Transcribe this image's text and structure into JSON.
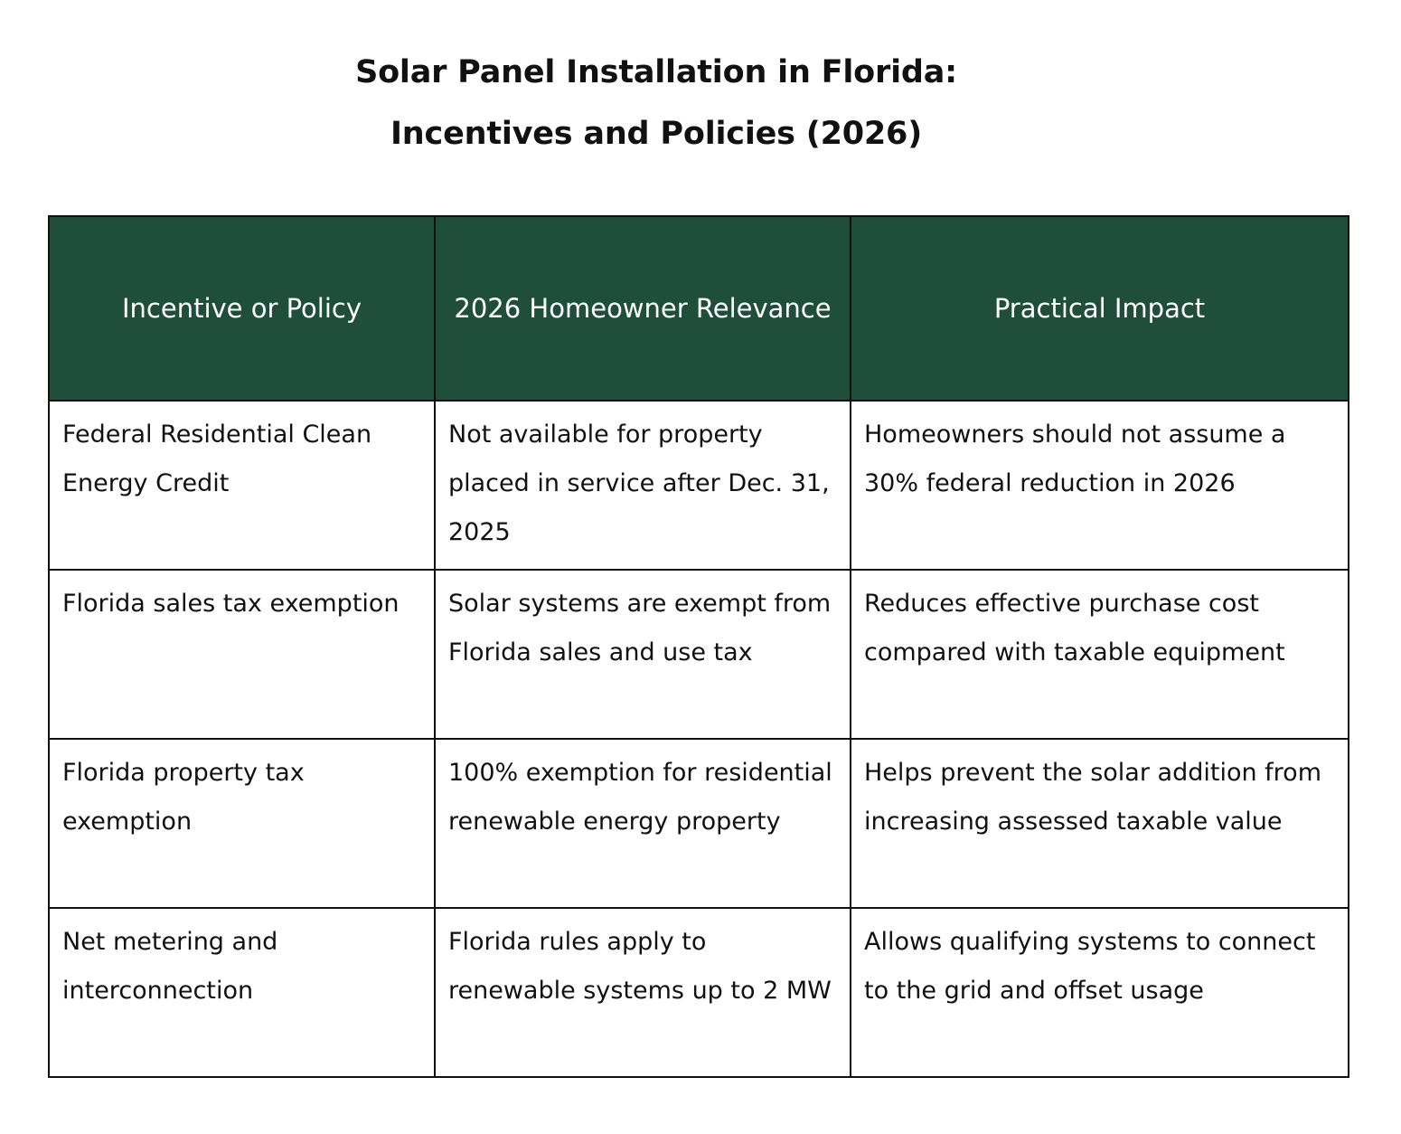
{
  "title": {
    "line1": "Solar Panel Installation in Florida:",
    "line2": "Incentives and Policies (2026)"
  },
  "table": {
    "headers": [
      "Incentive or Policy",
      "2026 Homeowner Relevance",
      "Practical Impact"
    ],
    "rows": [
      [
        "Federal Residential Clean Energy Credit",
        "Not available for property placed in service after Dec. 31, 2025",
        "Homeowners should not assume a 30% federal reduction in 2026"
      ],
      [
        "Florida sales tax exemption",
        "Solar systems are exempt from Florida sales and use tax",
        "Reduces effective purchase cost compared with taxable equipment"
      ],
      [
        "Florida property tax exemption",
        "100% exemption for residential renewable energy property",
        "Helps prevent the solar addition from increasing assessed taxable value"
      ],
      [
        "Net metering and interconnection",
        "Florida rules apply to renewable systems up to 2 MW",
        "Allows qualifying systems to connect to the grid and offset usage"
      ]
    ]
  },
  "colors": {
    "header_bg": "#1f4f3b",
    "header_text": "#ffffff",
    "border": "#111111"
  }
}
